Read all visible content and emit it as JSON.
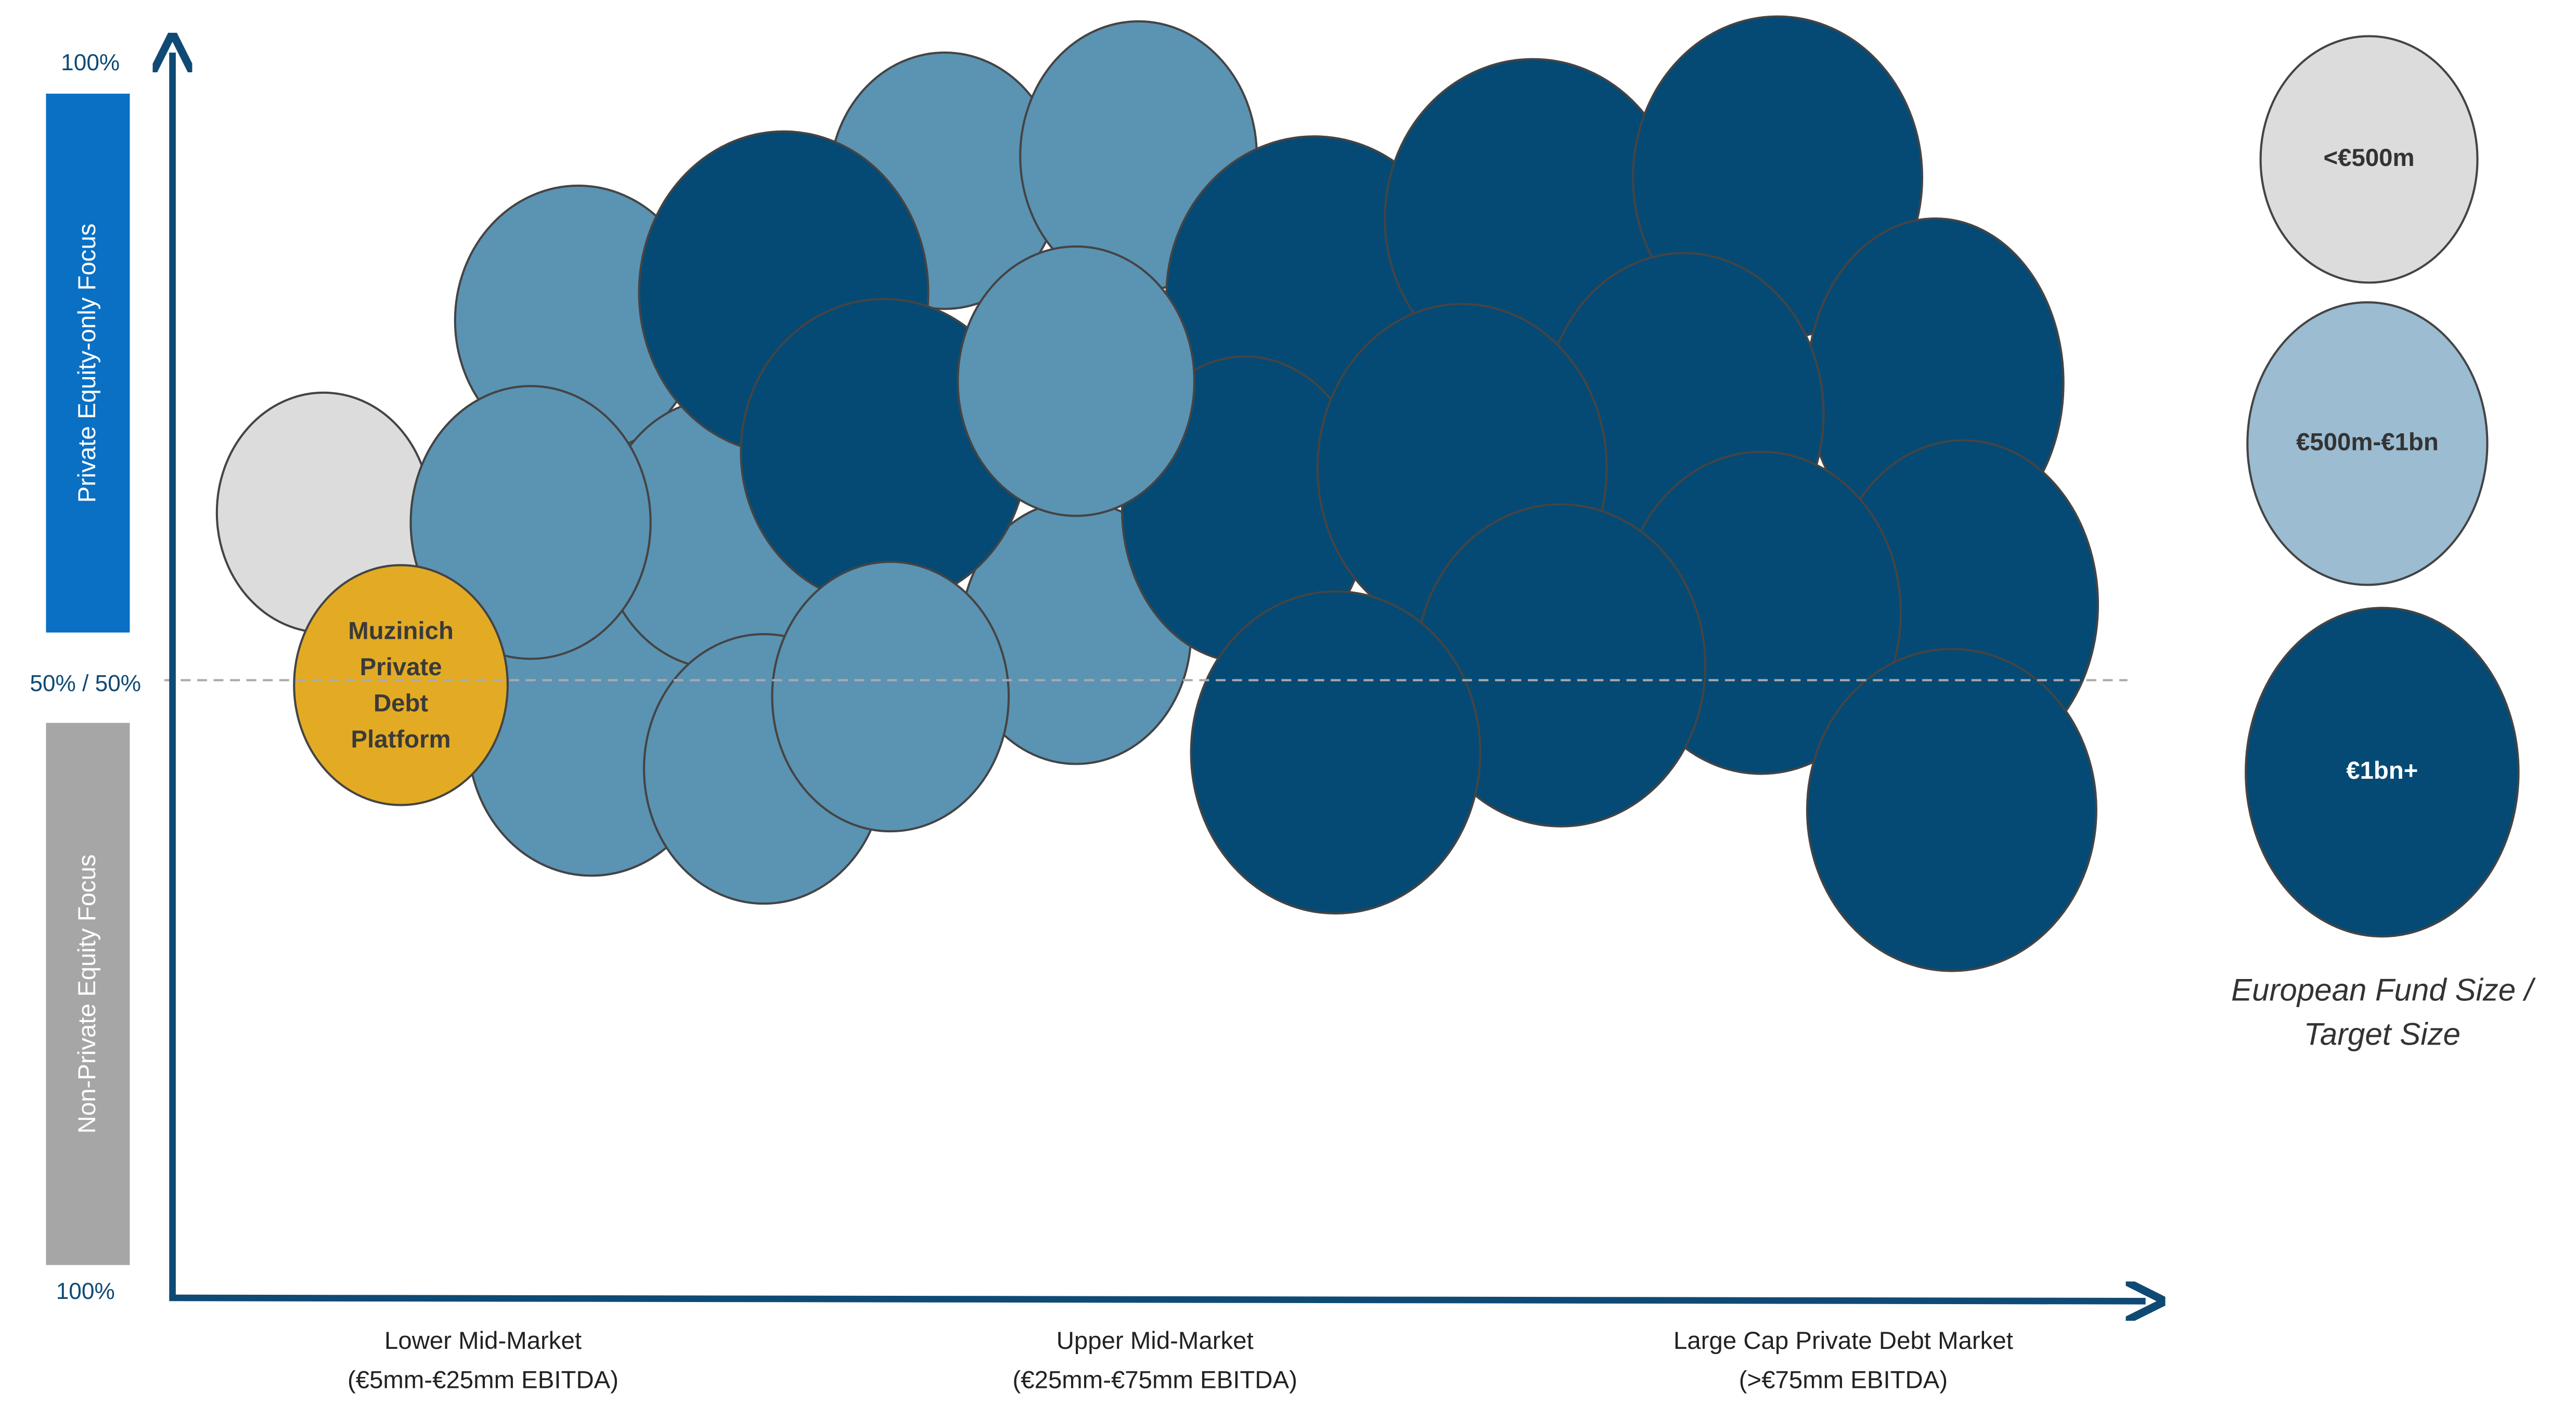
{
  "y_axis": {
    "top_label": "100%",
    "mid_label": "50% / 50%",
    "bottom_label": "100%",
    "upper_band": "Private Equity-only Focus",
    "lower_band": "Non-Private Equity Focus"
  },
  "x_axis": {
    "segments": [
      {
        "name": "Lower Mid-Market",
        "range": "(€5mm-€25mm EBITDA)"
      },
      {
        "name": "Upper Mid-Market",
        "range": "(€25mm-€75mm EBITDA)"
      },
      {
        "name": "Large Cap Private Debt Market",
        "range": "(>€75mm EBITDA)"
      }
    ]
  },
  "highlight": {
    "lines": [
      "Muzinich",
      "Private",
      "Debt",
      "Platform"
    ]
  },
  "legend": {
    "title_lines": [
      "European Fund Size /",
      "Target Size"
    ],
    "items": [
      {
        "label": "<€500m",
        "color": "#dcdcdc"
      },
      {
        "label": "€500m-€1bn",
        "color": "#9bbcd1"
      },
      {
        "label": "€1bn+",
        "color": "#044a75"
      }
    ]
  }
}
